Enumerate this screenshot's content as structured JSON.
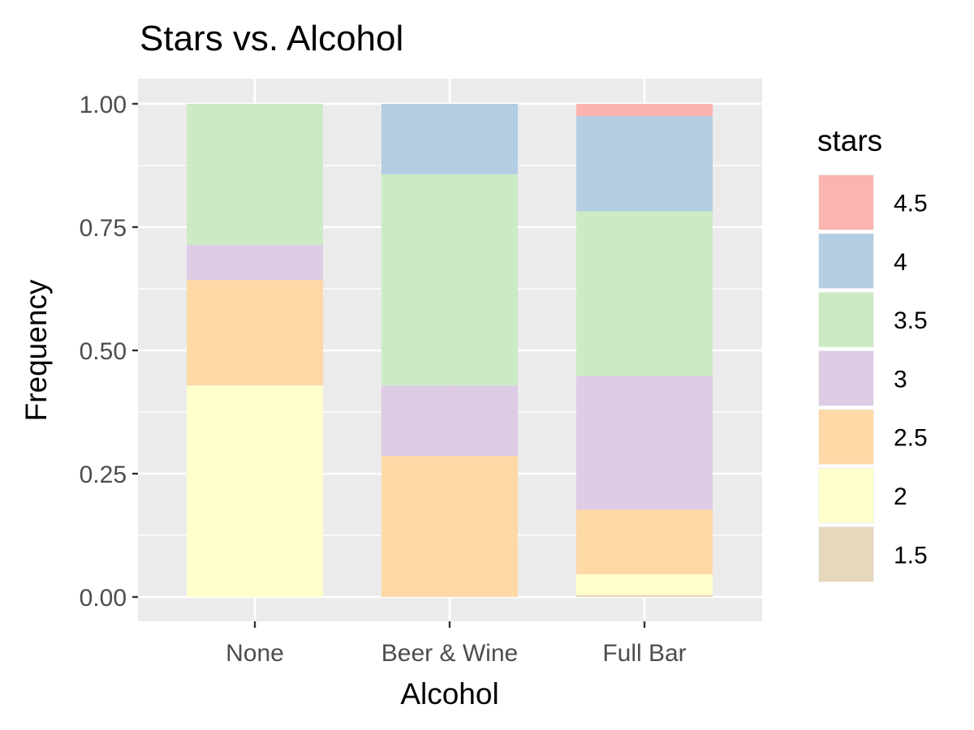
{
  "chart_data": {
    "type": "bar",
    "stacked": true,
    "title": "Stars vs. Alcohol",
    "xlabel": "Alcohol",
    "ylabel": "Frequency",
    "ylim": [
      0,
      1
    ],
    "yticks": [
      "0.00",
      "0.25",
      "0.50",
      "0.75",
      "1.00"
    ],
    "ytick_values": [
      0,
      0.25,
      0.5,
      0.75,
      1.0
    ],
    "categories": [
      "None",
      "Beer & Wine",
      "Full Bar"
    ],
    "grid": true,
    "legend": {
      "title": "stars",
      "position": "right",
      "items": [
        "4.5",
        "4",
        "3.5",
        "3",
        "2.5",
        "2",
        "1.5"
      ]
    },
    "series": [
      {
        "name": "1.5",
        "color": "#E5D8BD",
        "values": [
          0.0,
          0.0,
          0.004
        ]
      },
      {
        "name": "2",
        "color": "#FFFFCC",
        "values": [
          0.429,
          0.0,
          0.042
        ]
      },
      {
        "name": "2.5",
        "color": "#FED9A6",
        "values": [
          0.214,
          0.286,
          0.131
        ]
      },
      {
        "name": "3",
        "color": "#DECBE4",
        "values": [
          0.071,
          0.143,
          0.271
        ]
      },
      {
        "name": "3.5",
        "color": "#CCEBC5",
        "values": [
          0.286,
          0.428,
          0.334
        ]
      },
      {
        "name": "4",
        "color": "#B3CDE3",
        "values": [
          0.0,
          0.143,
          0.193
        ]
      },
      {
        "name": "4.5",
        "color": "#FBB4AE",
        "values": [
          0.0,
          0.0,
          0.025
        ]
      }
    ]
  }
}
